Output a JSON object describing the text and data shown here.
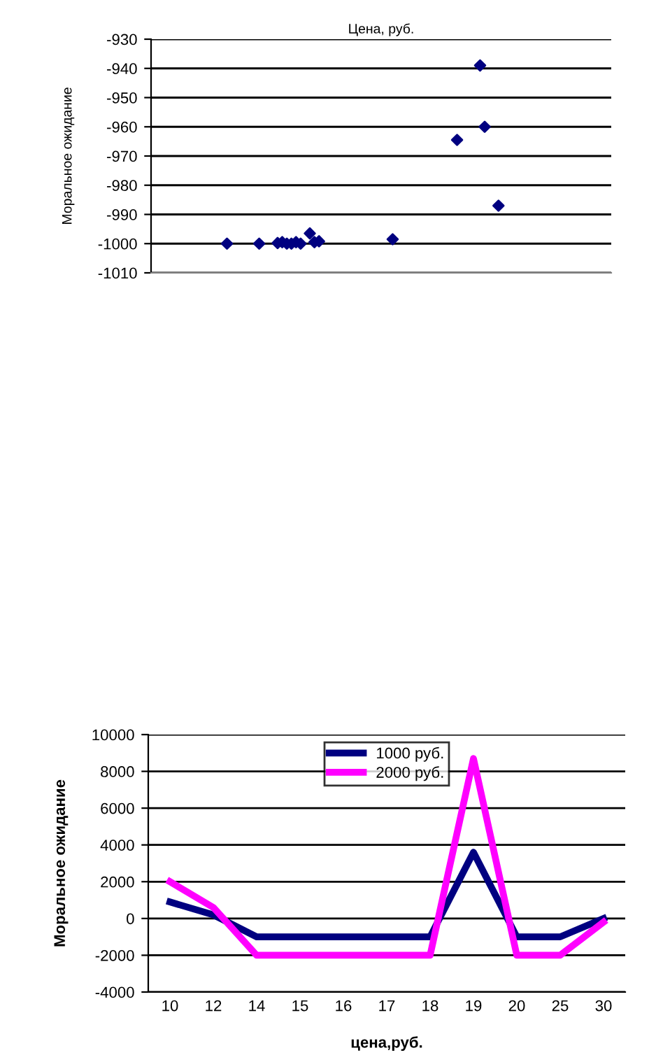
{
  "chart_data": [
    {
      "type": "scatter",
      "title": "Цена, руб.",
      "ylabel": "Моральное ожидание",
      "categories": [
        null,
        null,
        null,
        null,
        null,
        null,
        null,
        null,
        null,
        null,
        null,
        null,
        null,
        null,
        null,
        null,
        null,
        null,
        null,
        null,
        null,
        null,
        null,
        null,
        null,
        null,
        null,
        null,
        null,
        null,
        null,
        null,
        null,
        null,
        null,
        null,
        null,
        null,
        null,
        null,
        null,
        null,
        null,
        null,
        null,
        null,
        null,
        null,
        null,
        null,
        null,
        null,
        null,
        null,
        null,
        null,
        null,
        null,
        null,
        null,
        null,
        null,
        null,
        null,
        null,
        null,
        null,
        null,
        null,
        null,
        null,
        null,
        null,
        null,
        null,
        null,
        null,
        null,
        null,
        null,
        null,
        null,
        null,
        null,
        null,
        null,
        null,
        null,
        null,
        null,
        null,
        null,
        null,
        null,
        null,
        null,
        null,
        null,
        null,
        null
      ],
      "series": [
        {
          "color": "#000080",
          "values": [
            null,
            null,
            null,
            null,
            null,
            null,
            null,
            null,
            null,
            null,
            null,
            null,
            null,
            null,
            null,
            null,
            -1000,
            null,
            null,
            null,
            null,
            null,
            null,
            -1000,
            null,
            null,
            null,
            -999.8,
            -999.5,
            -1000,
            -1000,
            -999.5,
            -1000,
            null,
            -996.5,
            -999.5,
            -999.2,
            null,
            null,
            null,
            null,
            null,
            null,
            null,
            null,
            null,
            null,
            null,
            null,
            null,
            null,
            null,
            -998.5,
            null,
            null,
            null,
            null,
            null,
            null,
            null,
            null,
            null,
            null,
            null,
            null,
            null,
            -964.5,
            null,
            null,
            null,
            null,
            -939,
            -960,
            null,
            null,
            -987,
            null,
            null,
            null,
            null,
            null,
            null,
            null,
            null,
            null,
            null,
            null,
            null,
            null,
            null,
            null,
            null,
            null,
            null,
            null,
            null,
            null,
            null,
            null,
            null
          ]
        }
      ],
      "ylim": [
        -1010,
        -930
      ],
      "yticks": [
        -930,
        -940,
        -950,
        -960,
        -970,
        -980,
        -990,
        -1000,
        -1010
      ],
      "grid": "y",
      "marker": "diamond",
      "tick_labels": "y"
    },
    {
      "type": "line",
      "xlabel": "цена,руб.",
      "ylabel": "Моральное ожидание",
      "categories": [
        "10",
        "12",
        "14",
        "15",
        "16",
        "17",
        "18",
        "19",
        "20",
        "25",
        "30"
      ],
      "series": [
        {
          "name": "1000 руб.",
          "color": "#000080",
          "values": [
            900,
            200,
            -1000,
            -1000,
            -1000,
            -1000,
            -1000,
            3600,
            -1000,
            -1000,
            0
          ]
        },
        {
          "name": "2000 руб.",
          "color": "#ff00ff",
          "values": [
            2000,
            600,
            -2000,
            -2000,
            -2000,
            -2000,
            -2000,
            8700,
            -2000,
            -2000,
            -200
          ]
        }
      ],
      "ylim": [
        -4000,
        10000
      ],
      "yticks": [
        -4000,
        -2000,
        0,
        2000,
        4000,
        6000,
        8000,
        10000
      ],
      "grid": "y",
      "legend": "top",
      "marker": "none"
    }
  ]
}
